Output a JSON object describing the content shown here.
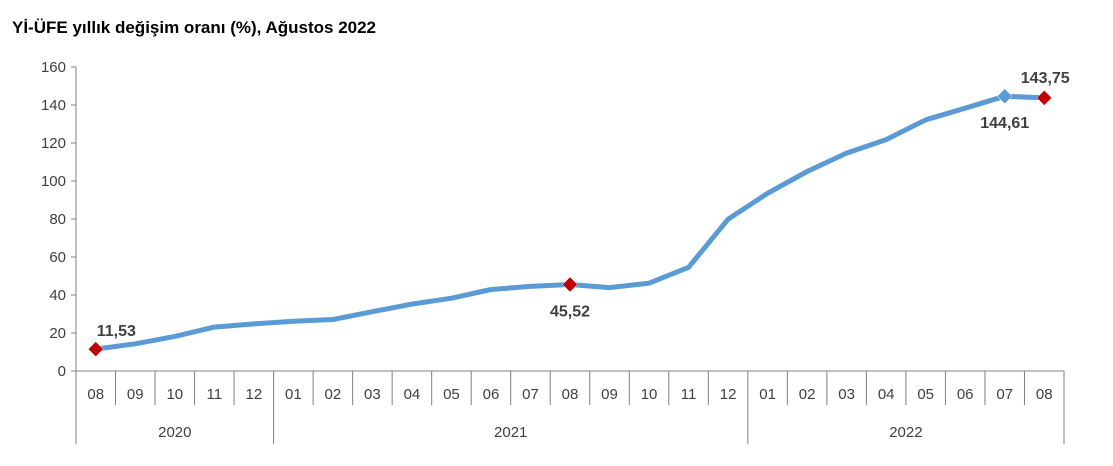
{
  "title": "Yİ-ÜFE yıllık değişim oranı (%), Ağustos 2022",
  "chart_data": {
    "type": "line",
    "title": "Yİ-ÜFE yıllık değişim oranı (%), Ağustos 2022",
    "xlabel": "",
    "ylabel": "",
    "ylim": [
      0,
      160
    ],
    "yticks": [
      "0",
      "20",
      "40",
      "60",
      "80",
      "100",
      "120",
      "140",
      "160"
    ],
    "grid": false,
    "categories": [
      "08",
      "09",
      "10",
      "11",
      "12",
      "01",
      "02",
      "03",
      "04",
      "05",
      "06",
      "07",
      "08",
      "09",
      "10",
      "11",
      "12",
      "01",
      "02",
      "03",
      "04",
      "05",
      "06",
      "07",
      "08"
    ],
    "years": [
      {
        "label": "2020",
        "count": 5
      },
      {
        "label": "2021",
        "count": 12
      },
      {
        "label": "2022",
        "count": 8
      }
    ],
    "series": [
      {
        "color": "#5b9bd5",
        "values": [
          11.53,
          14.3,
          18.2,
          23.1,
          24.8,
          26.2,
          27.1,
          31.2,
          35.2,
          38.3,
          42.9,
          44.5,
          45.52,
          43.9,
          46.2,
          54.6,
          79.9,
          93.5,
          105.0,
          114.7,
          121.8,
          132.2,
          138.3,
          144.61,
          143.75
        ]
      }
    ],
    "annotations": [
      {
        "index": 0,
        "label": "11,53",
        "marker": "diamond",
        "color": "#c00000",
        "position": "above-right"
      },
      {
        "index": 12,
        "label": "45,52",
        "marker": "diamond",
        "color": "#c00000",
        "position": "below"
      },
      {
        "index": 23,
        "label": "144,61",
        "marker": "diamond",
        "color": "#5b9bd5",
        "position": "below"
      },
      {
        "index": 24,
        "label": "143,75",
        "marker": "diamond",
        "color": "#c00000",
        "position": "above"
      }
    ]
  }
}
